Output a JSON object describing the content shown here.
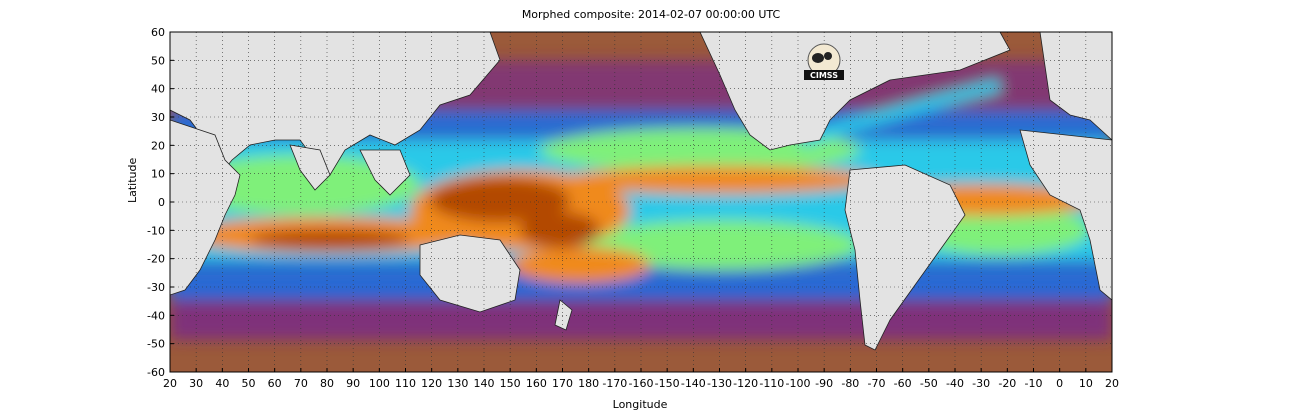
{
  "title": "Morphed composite: 2014-02-07 00:00:00 UTC",
  "xlabel": "Longitude",
  "ylabel": "Latitude",
  "x_ticks": [
    "20",
    "30",
    "40",
    "50",
    "60",
    "70",
    "80",
    "90",
    "100",
    "110",
    "120",
    "130",
    "140",
    "150",
    "160",
    "170",
    "180",
    "-170",
    "-160",
    "-150",
    "-140",
    "-130",
    "-120",
    "-110",
    "-100",
    "-90",
    "-80",
    "-70",
    "-60",
    "-50",
    "-40",
    "-30",
    "-20",
    "-10",
    "0",
    "10",
    "20"
  ],
  "y_ticks": [
    "60",
    "50",
    "40",
    "30",
    "20",
    "10",
    "0",
    "-10",
    "-20",
    "-30",
    "-40",
    "-50",
    "-60"
  ],
  "logo_text": "CIMSS",
  "colors": {
    "land": "#e3e3e3",
    "dry": "#9b5a3a",
    "low": "#7a2b86",
    "mid_low": "#1f6fe0",
    "mid": "#2cc9e8",
    "mid_high": "#7ff07a",
    "high": "#f08a1a",
    "very_high": "#b34a05"
  },
  "grid": true
}
